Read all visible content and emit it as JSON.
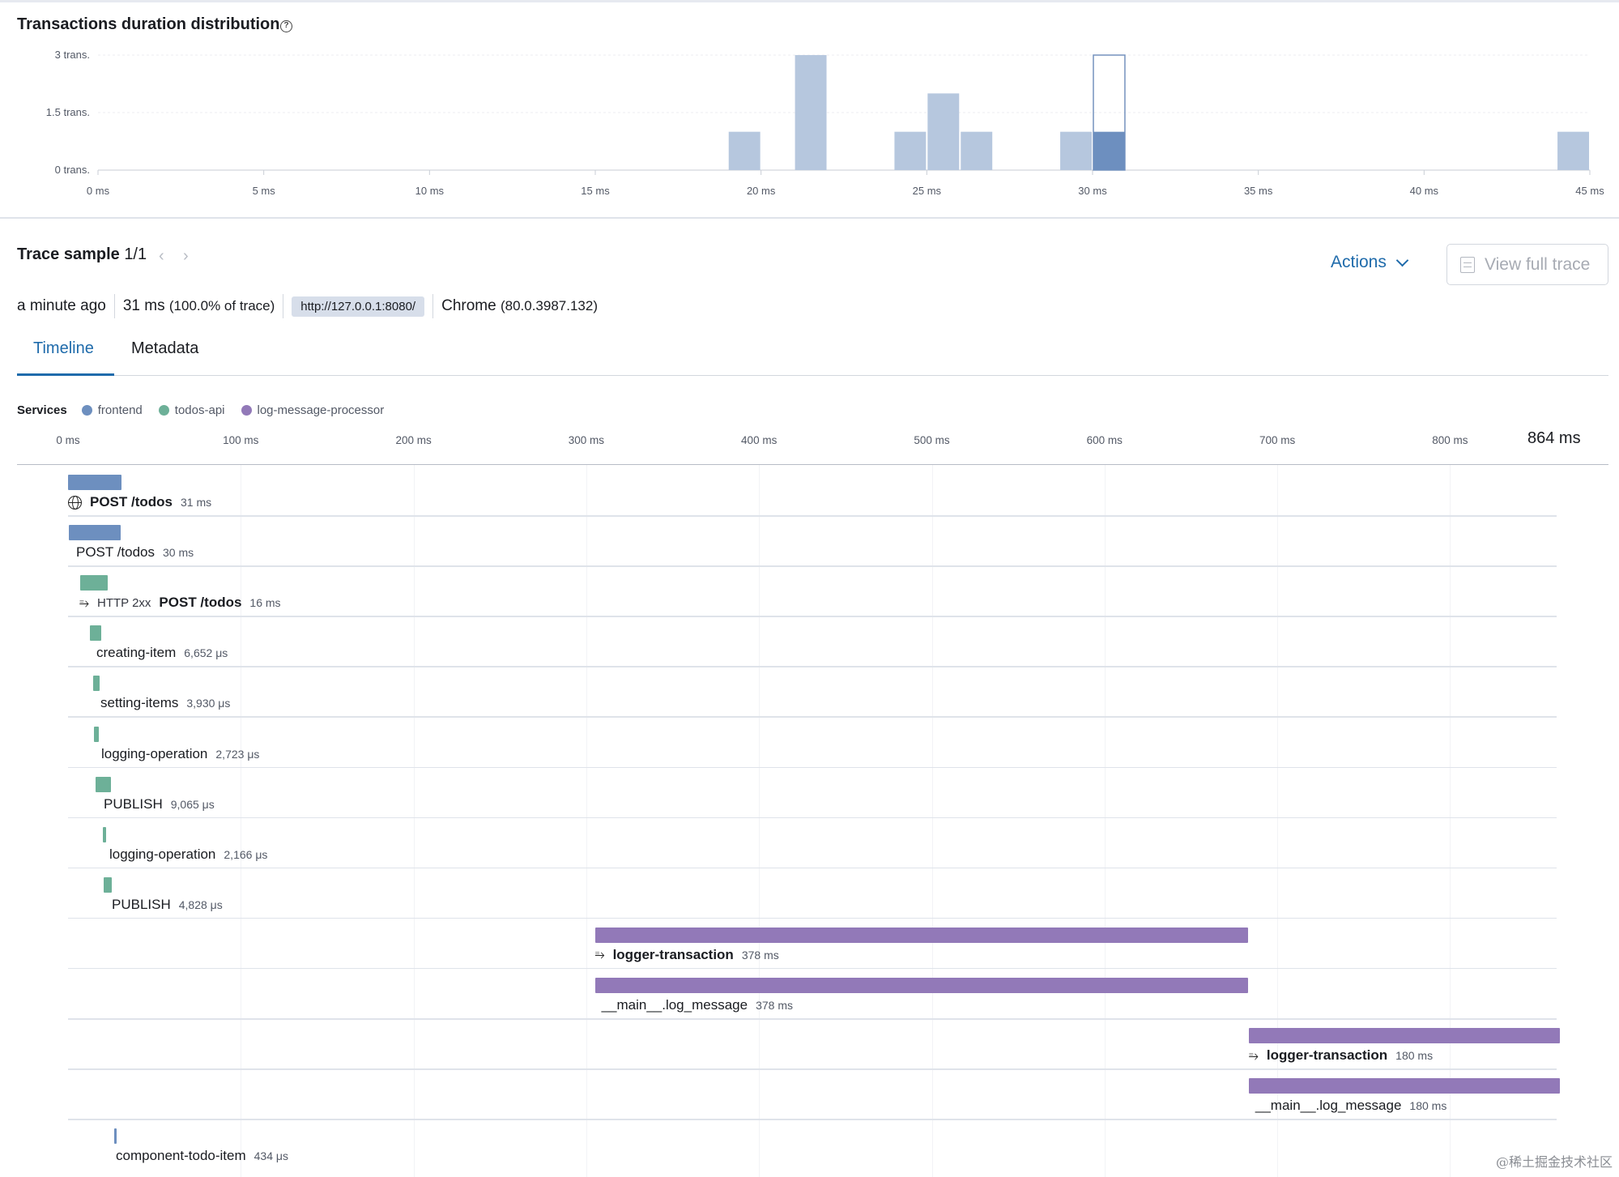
{
  "distribution": {
    "title": "Transactions duration distribution",
    "help_icon": "question-circle-icon"
  },
  "chart_data": {
    "type": "bar",
    "title": "Transactions duration distribution",
    "xlabel": "",
    "ylabel": "",
    "xlim": [
      0,
      45
    ],
    "ylim": [
      0,
      3
    ],
    "x_ticks": [
      "0 ms",
      "5 ms",
      "10 ms",
      "15 ms",
      "20 ms",
      "25 ms",
      "30 ms",
      "35 ms",
      "40 ms",
      "45 ms"
    ],
    "y_ticks": [
      "0 trans.",
      "1.5 trans.",
      "3 trans."
    ],
    "bin_width_ms": 1,
    "bins": [
      {
        "start": 19,
        "count": 1
      },
      {
        "start": 21,
        "count": 3
      },
      {
        "start": 24,
        "count": 1
      },
      {
        "start": 25,
        "count": 2
      },
      {
        "start": 26,
        "count": 1
      },
      {
        "start": 29,
        "count": 1
      },
      {
        "start": 30,
        "count": 1,
        "selected": true
      },
      {
        "start": 44,
        "count": 1
      }
    ],
    "selected_bin_outline_max": 3,
    "colors": {
      "bar": "#b6c7de",
      "selected": "#6d8fbf",
      "outline": "#7592bd"
    },
    "grid": true
  },
  "trace": {
    "title": "Trace sample",
    "page": "1/1",
    "prev_icon": "chevron-left-icon",
    "next_icon": "chevron-right-icon",
    "actions_label": "Actions",
    "view_full_trace_label": "View full trace",
    "age": "a minute ago",
    "duration": "31 ms",
    "duration_pct": "(100.0% of trace)",
    "url": "http://127.0.0.1:8080/",
    "browser": "Chrome",
    "browser_version": "(80.0.3987.132)"
  },
  "tabs": [
    {
      "label": "Timeline",
      "active": true
    },
    {
      "label": "Metadata",
      "active": false
    }
  ],
  "services": {
    "label": "Services",
    "items": [
      {
        "name": "frontend",
        "color": "#6d8fbf"
      },
      {
        "name": "todos-api",
        "color": "#6db098"
      },
      {
        "name": "log-message-processor",
        "color": "#9279b8"
      }
    ]
  },
  "timeline": {
    "total_ms": 864,
    "total_label": "864 ms",
    "ticks": [
      "0 ms",
      "100 ms",
      "200 ms",
      "300 ms",
      "400 ms",
      "500 ms",
      "600 ms",
      "700 ms",
      "800 ms"
    ],
    "rows": [
      {
        "name": "POST /todos",
        "duration": "31 ms",
        "start_ms": 0,
        "dur_ms": 31,
        "service": "frontend",
        "bold": true,
        "icon": "globe-icon"
      },
      {
        "name": "POST /todos",
        "duration": "30 ms",
        "start_ms": 0.5,
        "dur_ms": 30,
        "service": "frontend",
        "bold": false
      },
      {
        "name": "POST /todos",
        "duration": "16 ms",
        "start_ms": 7,
        "dur_ms": 16,
        "service": "todos-api",
        "bold": true,
        "status": "HTTP 2xx",
        "icon": "merge-icon"
      },
      {
        "name": "creating-item",
        "duration": "6,652 μs",
        "start_ms": 12.5,
        "dur_ms": 6.652,
        "service": "todos-api",
        "bold": false
      },
      {
        "name": "setting-items",
        "duration": "3,930 μs",
        "start_ms": 14.5,
        "dur_ms": 3.93,
        "service": "todos-api",
        "bold": false
      },
      {
        "name": "logging-operation",
        "duration": "2,723 μs",
        "start_ms": 15,
        "dur_ms": 2.723,
        "service": "todos-api",
        "bold": false
      },
      {
        "name": "PUBLISH",
        "duration": "9,065 μs",
        "start_ms": 16,
        "dur_ms": 9.065,
        "service": "todos-api",
        "bold": false
      },
      {
        "name": "logging-operation",
        "duration": "2,166 μs",
        "start_ms": 20,
        "dur_ms": 2.166,
        "service": "todos-api",
        "bold": false
      },
      {
        "name": "PUBLISH",
        "duration": "4,828 μs",
        "start_ms": 20.5,
        "dur_ms": 4.828,
        "service": "todos-api",
        "bold": false
      },
      {
        "name": "logger-transaction",
        "duration": "378 ms",
        "start_ms": 305,
        "dur_ms": 378,
        "service": "log-message-processor",
        "bold": true,
        "icon": "merge-icon"
      },
      {
        "name": "__main__.log_message",
        "duration": "378 ms",
        "start_ms": 305,
        "dur_ms": 378,
        "service": "log-message-processor",
        "bold": false
      },
      {
        "name": "logger-transaction",
        "duration": "180 ms",
        "start_ms": 683.5,
        "dur_ms": 180,
        "service": "log-message-processor",
        "bold": true,
        "icon": "merge-icon"
      },
      {
        "name": "__main__.log_message",
        "duration": "180 ms",
        "start_ms": 683.5,
        "dur_ms": 180,
        "service": "log-message-processor",
        "bold": false
      },
      {
        "name": "component-todo-item",
        "duration": "434 μs",
        "start_ms": 26.5,
        "dur_ms": 0.434,
        "service": "frontend",
        "bold": false
      }
    ]
  },
  "watermark": "@稀土掘金技术社区"
}
